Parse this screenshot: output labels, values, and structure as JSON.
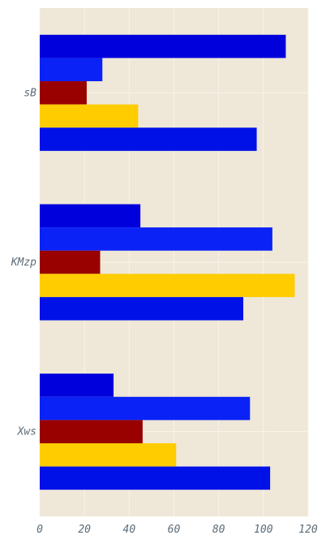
{
  "chart_data": {
    "type": "bar",
    "orientation": "horizontal",
    "categories": [
      "sB",
      "KMzp",
      "Xws"
    ],
    "series": [
      {
        "values": [
          110,
          45,
          33
        ],
        "color": "#0000dd"
      },
      {
        "values": [
          28,
          104,
          94
        ],
        "color": "#0a22f5"
      },
      {
        "values": [
          21,
          27,
          46
        ],
        "color": "#990000"
      },
      {
        "values": [
          44,
          114,
          61
        ],
        "color": "#ffcc00"
      },
      {
        "values": [
          97,
          91,
          103
        ],
        "color": "#0011e8"
      }
    ],
    "xlim": [
      0,
      120
    ],
    "xticks": [
      0,
      20,
      40,
      60,
      80,
      100,
      120
    ],
    "grid": true,
    "background": "#efe7d7",
    "title": "",
    "xlabel": "",
    "ylabel": ""
  }
}
